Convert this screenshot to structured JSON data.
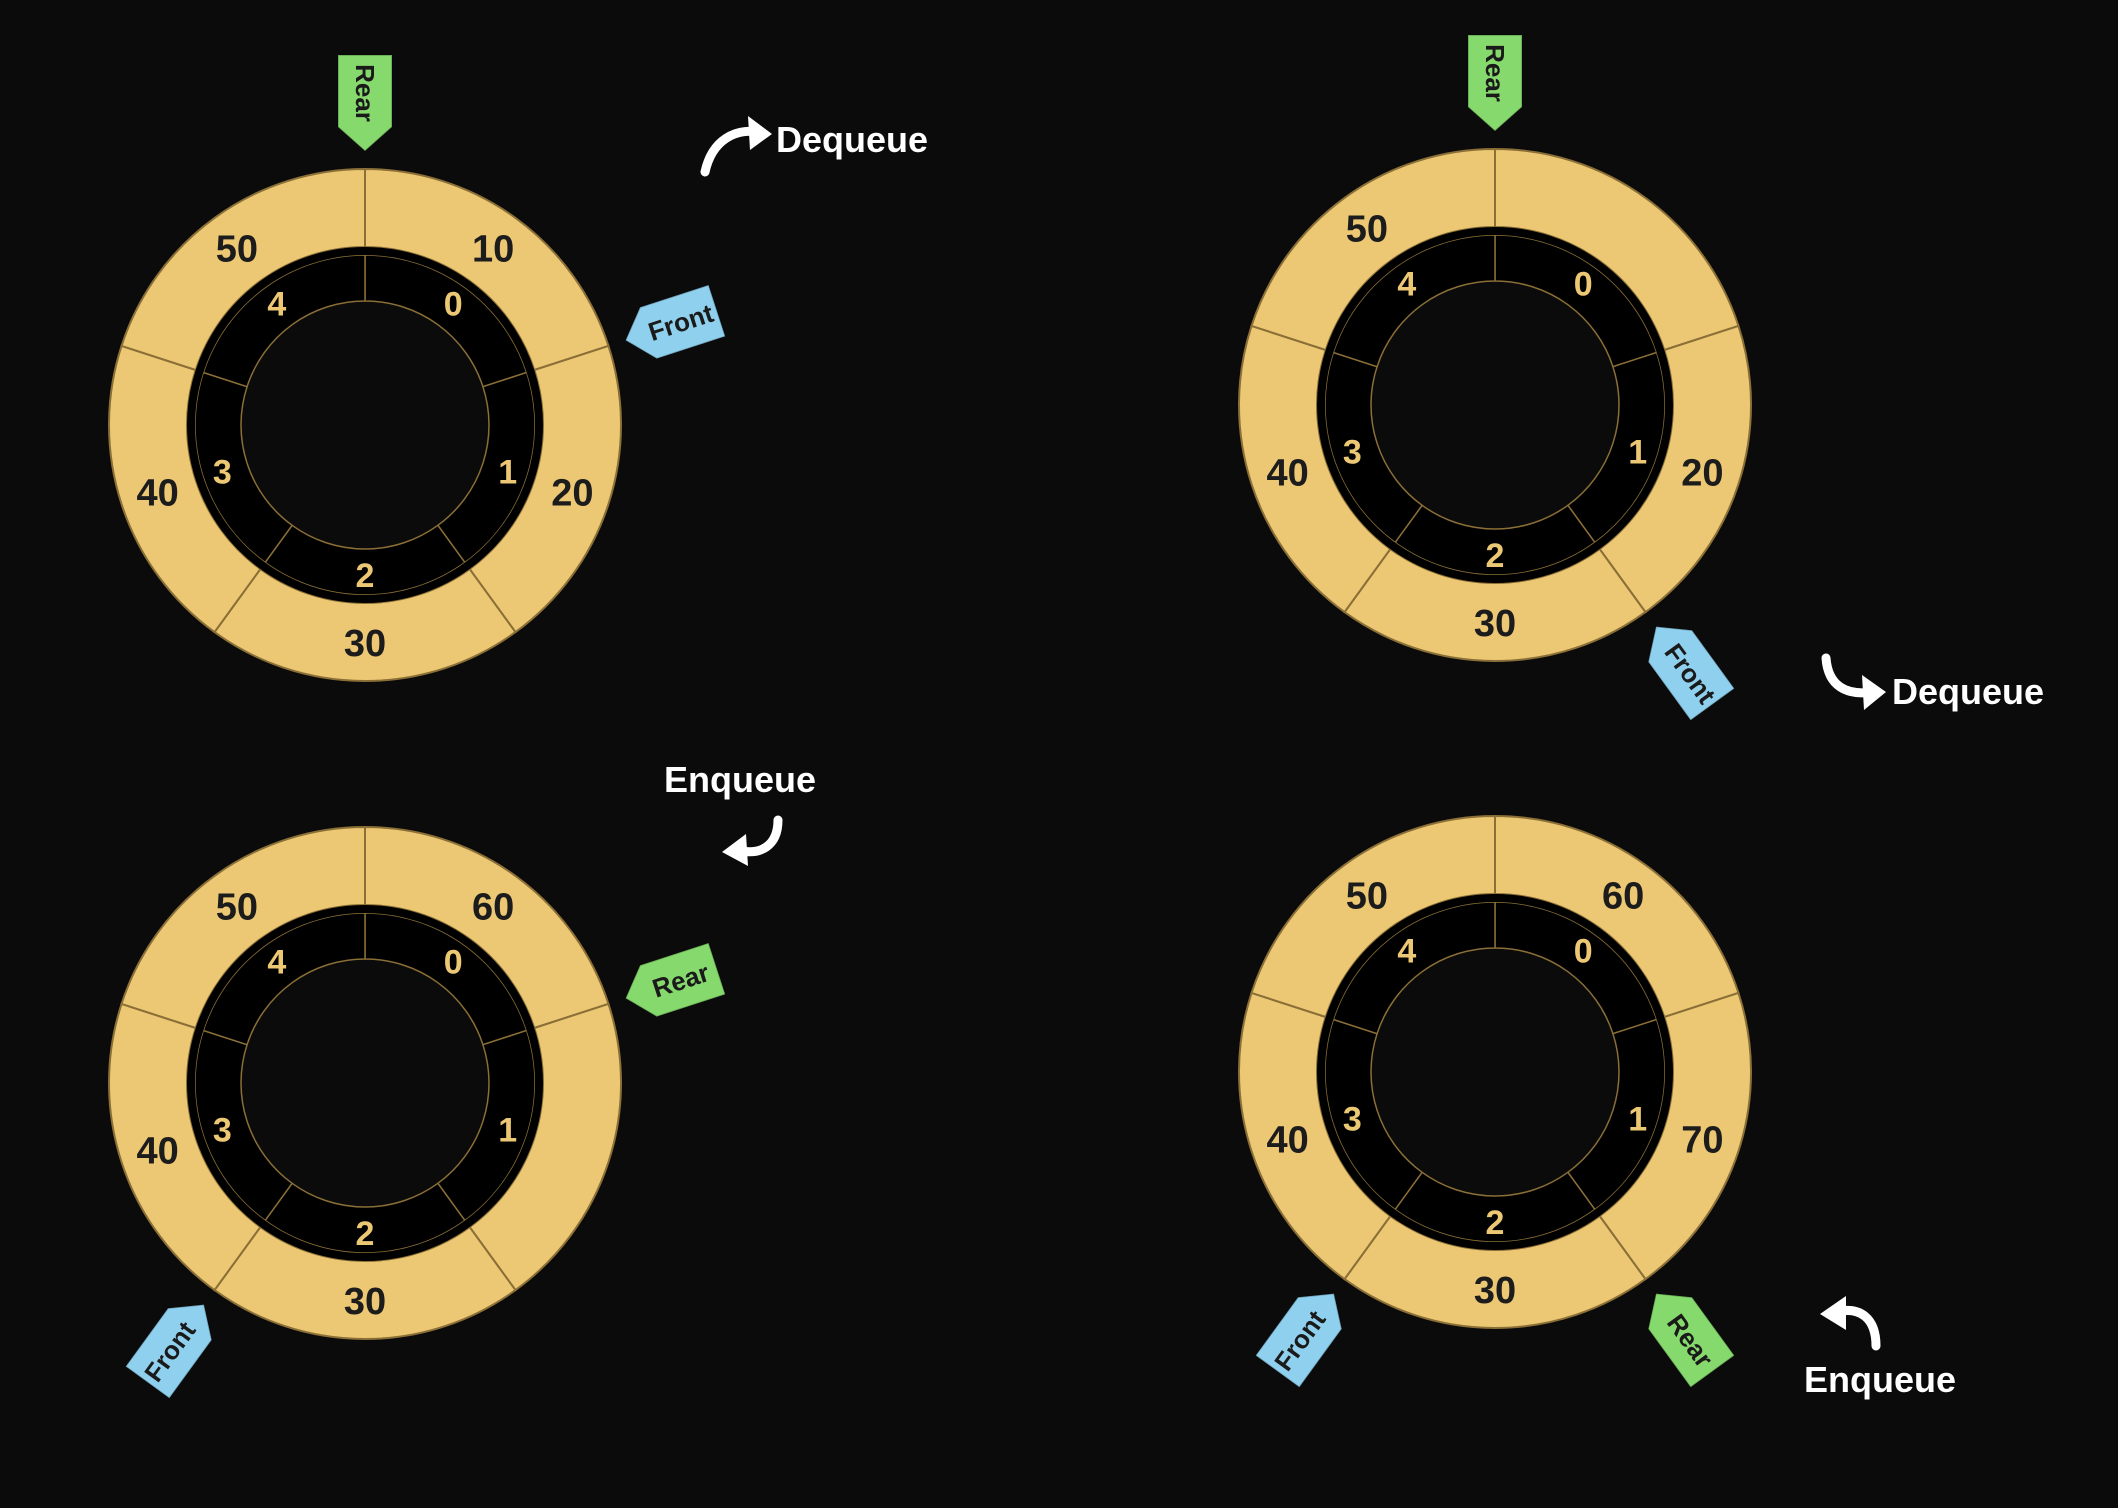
{
  "palette": {
    "background": "#0b0b0b",
    "outer_ring": "#ecc874",
    "inner_ring": "#000000",
    "ring_edge": "#8a6f36",
    "value_text": "#1c1c1c",
    "index_text": "#ecc874",
    "front_tag": "#8fd0ee",
    "rear_tag": "#86d96d",
    "tag_text": "#1a1a1a",
    "arrow": "#ffffff",
    "label_text": "#ffffff"
  },
  "pointer_names": {
    "front": "Front",
    "rear": "Rear"
  },
  "operation_names": {
    "dequeue": "Dequeue",
    "enqueue": "Enqueue"
  },
  "panels": [
    {
      "id": "panel-1",
      "slots": [
        {
          "index": "0",
          "value": "10"
        },
        {
          "index": "1",
          "value": "20"
        },
        {
          "index": "2",
          "value": "30"
        },
        {
          "index": "3",
          "value": "40"
        },
        {
          "index": "4",
          "value": "50"
        }
      ],
      "front_index": 0,
      "rear_index": 4,
      "operation": "dequeue"
    },
    {
      "id": "panel-2",
      "slots": [
        {
          "index": "0",
          "value": ""
        },
        {
          "index": "1",
          "value": "20"
        },
        {
          "index": "2",
          "value": "30"
        },
        {
          "index": "3",
          "value": "40"
        },
        {
          "index": "4",
          "value": "50"
        }
      ],
      "front_index": 1,
      "rear_index": 4,
      "operation": "dequeue"
    },
    {
      "id": "panel-3",
      "slots": [
        {
          "index": "0",
          "value": "60"
        },
        {
          "index": "1",
          "value": ""
        },
        {
          "index": "2",
          "value": "30"
        },
        {
          "index": "3",
          "value": "40"
        },
        {
          "index": "4",
          "value": "50"
        }
      ],
      "front_index": 2,
      "rear_index": 0,
      "operation": "enqueue"
    },
    {
      "id": "panel-4",
      "slots": [
        {
          "index": "0",
          "value": "60"
        },
        {
          "index": "1",
          "value": "70"
        },
        {
          "index": "2",
          "value": "30"
        },
        {
          "index": "3",
          "value": "40"
        },
        {
          "index": "4",
          "value": "50"
        }
      ],
      "front_index": 2,
      "rear_index": 1,
      "operation": "enqueue"
    }
  ]
}
